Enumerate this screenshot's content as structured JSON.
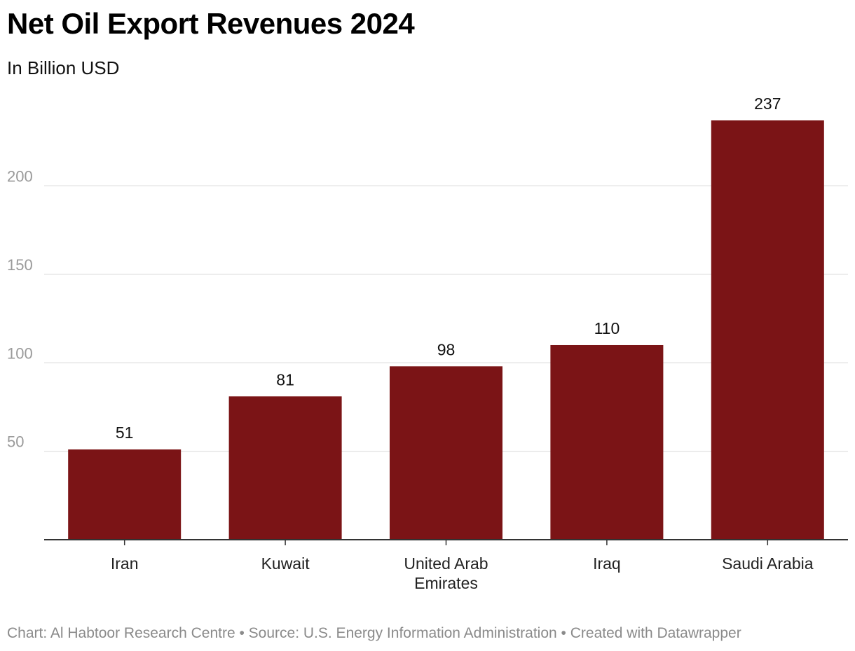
{
  "title": "Net Oil Export Revenues 2024",
  "subtitle": "In Billion USD",
  "footer": "Chart: Al Habtoor Research Centre • Source: U.S. Energy Information Administration • Created with Datawrapper",
  "colors": {
    "bar": "#7B1416",
    "grid": "#e0e0e0",
    "axis": "#333333",
    "tick_label": "#9a9a9a",
    "value_label": "#111111",
    "category_label": "#222222"
  },
  "chart_data": {
    "type": "bar",
    "title": "Net Oil Export Revenues 2024",
    "subtitle": "In Billion USD",
    "xlabel": "",
    "ylabel": "",
    "categories": [
      [
        "Iran"
      ],
      [
        "Kuwait"
      ],
      [
        "United Arab",
        "Emirates"
      ],
      [
        "Iraq"
      ],
      [
        "Saudi Arabia"
      ]
    ],
    "values": [
      51,
      81,
      98,
      110,
      237
    ],
    "value_labels": [
      "51",
      "81",
      "98",
      "110",
      "237"
    ],
    "ylim": [
      0,
      237
    ],
    "yticks": [
      50,
      100,
      150,
      200
    ],
    "ytick_labels": [
      "50",
      "100",
      "150",
      "200"
    ],
    "grid": true,
    "legend": "none"
  }
}
